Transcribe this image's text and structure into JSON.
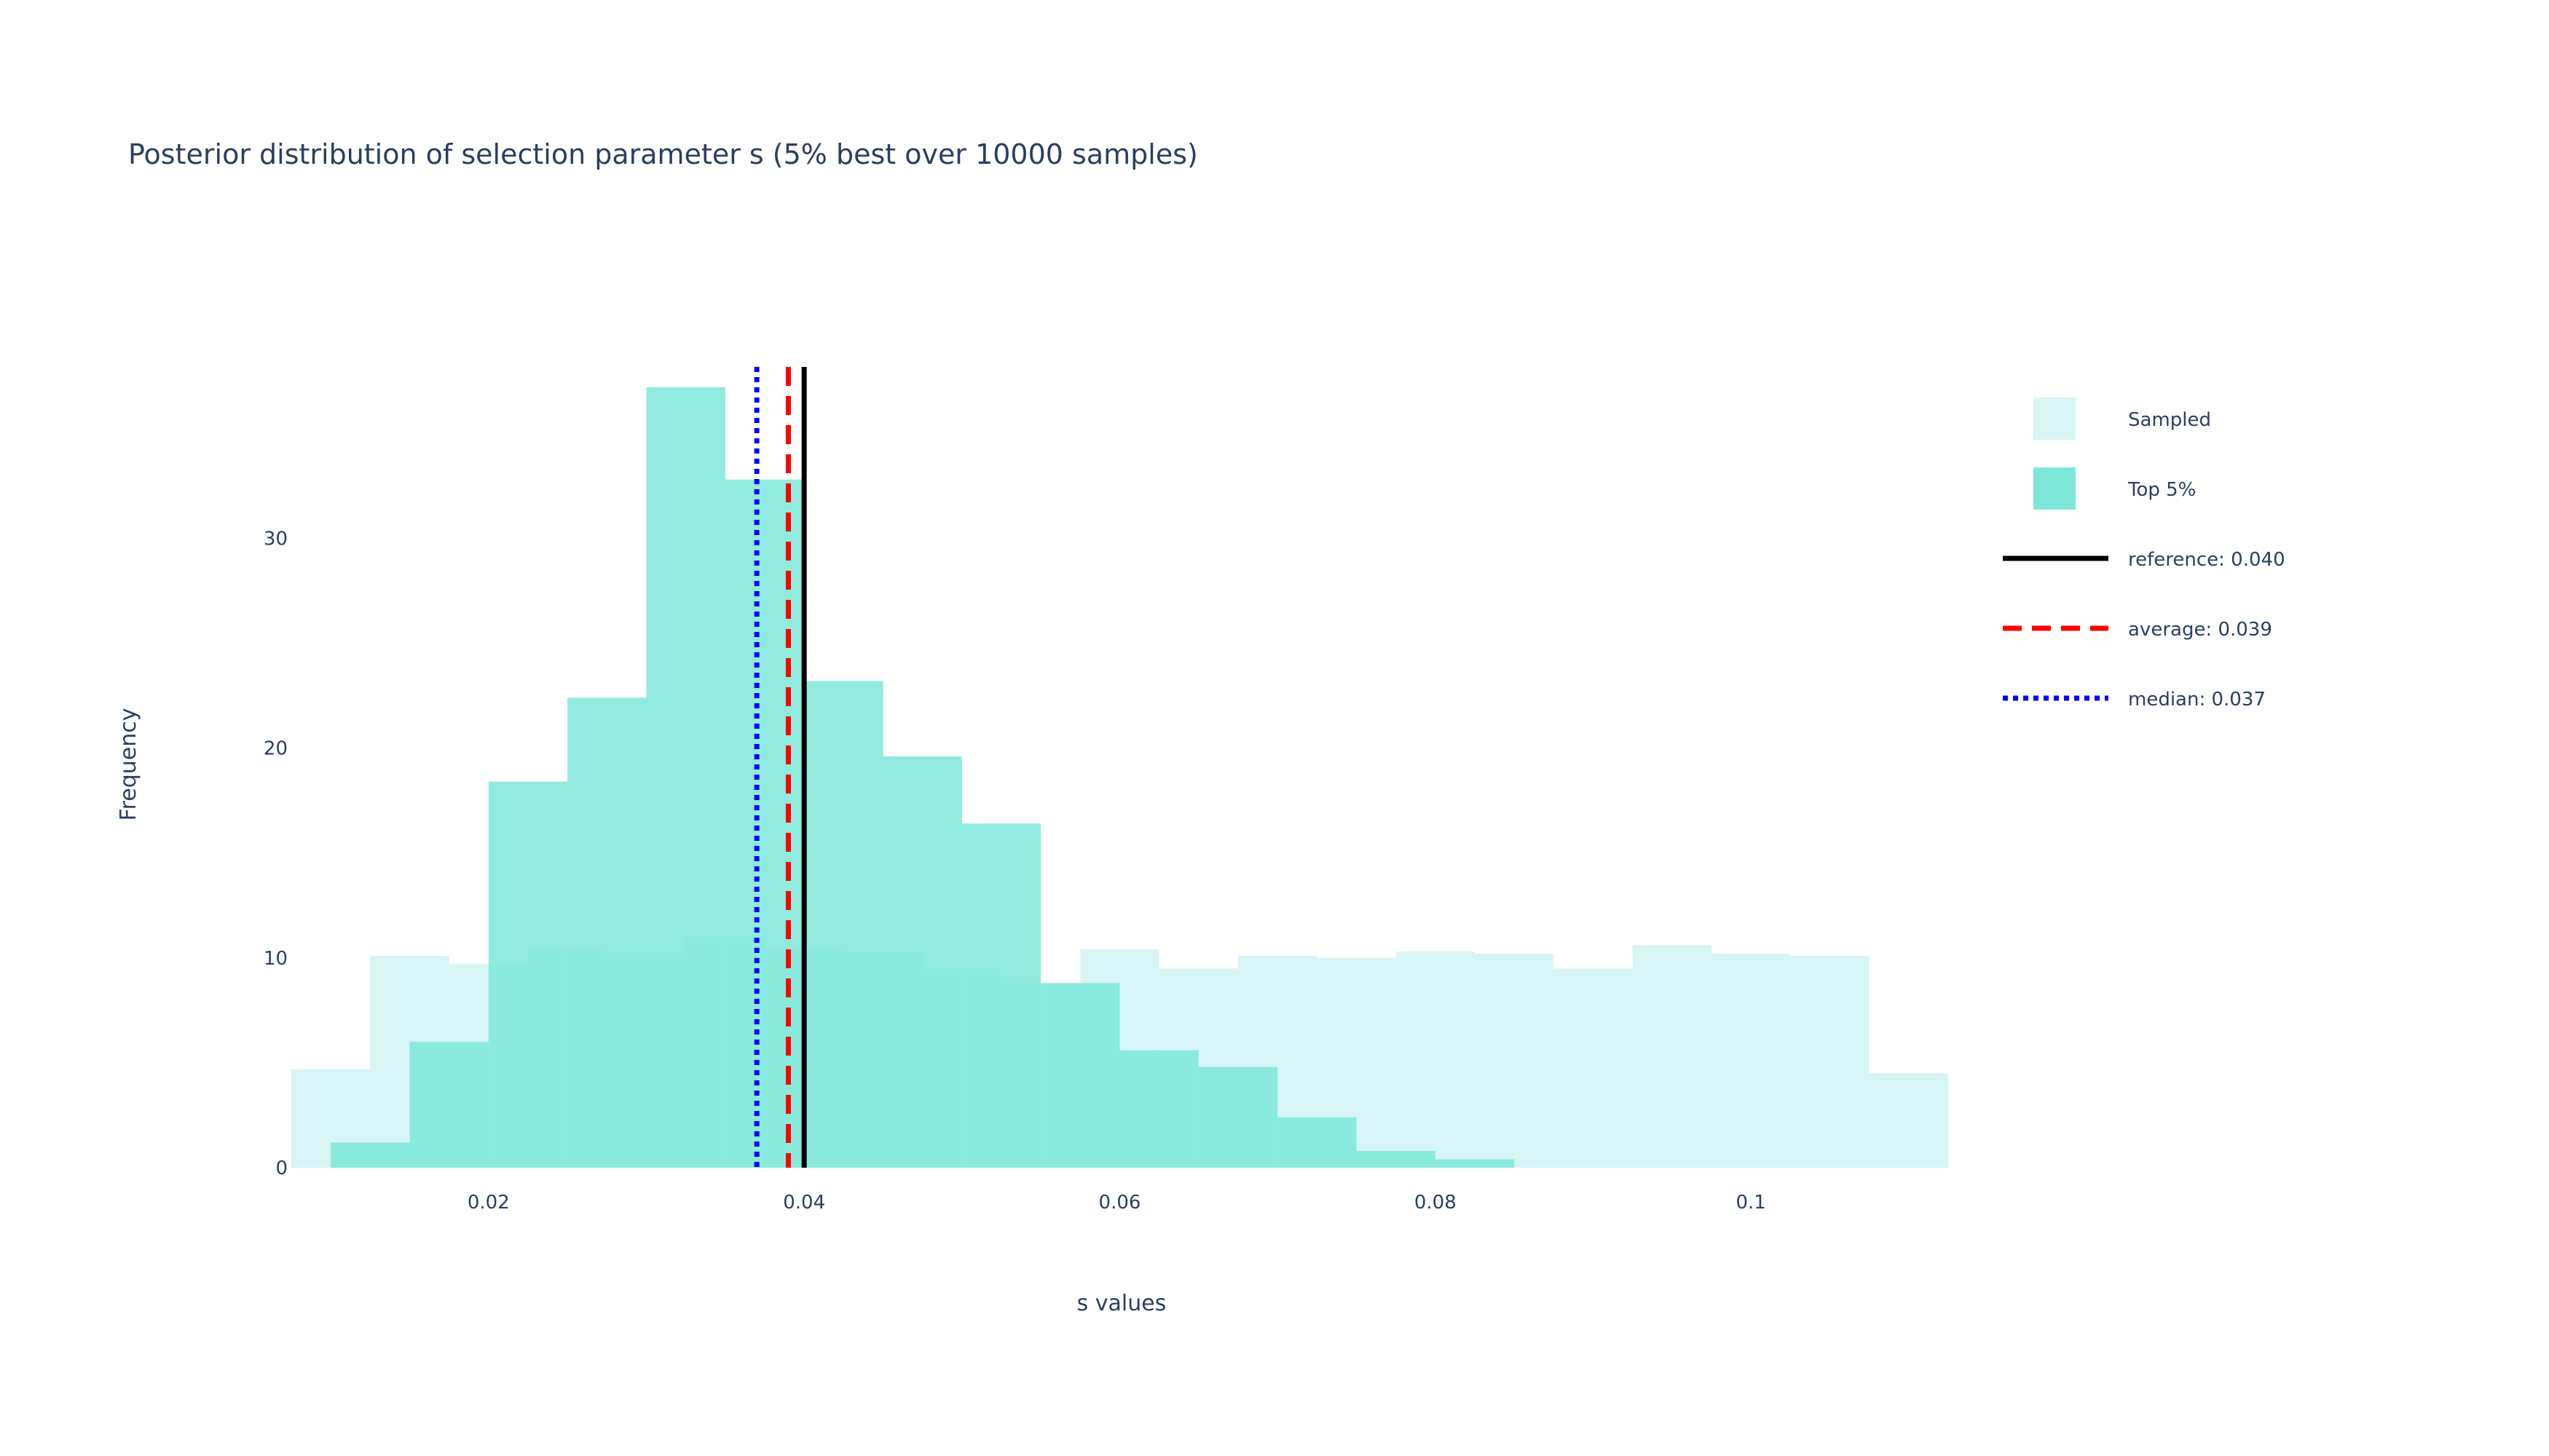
{
  "chart_data": {
    "type": "bar",
    "title": "Posterior distribution of selection parameter s (5% best over 10000 samples)",
    "xlabel": "s values",
    "ylabel": "Frequency",
    "xlim": [
      0.0075,
      0.1125
    ],
    "ylim": [
      0,
      39
    ],
    "x_ticks": [
      0.02,
      0.04,
      0.06,
      0.08,
      0.1
    ],
    "x_tick_labels": [
      "0.02",
      "0.04",
      "0.06",
      "0.08",
      "0.1"
    ],
    "y_ticks": [
      0,
      10,
      20,
      30
    ],
    "y_tick_labels": [
      "0",
      "10",
      "20",
      "30"
    ],
    "barmode": "overlay",
    "series": [
      {
        "name": "Sampled",
        "color": "#d6f5f4",
        "bin_edges": [
          0.0075,
          0.0125,
          0.0175,
          0.0225,
          0.0275,
          0.0325,
          0.0375,
          0.0425,
          0.0475,
          0.0525,
          0.0575,
          0.0625,
          0.0675,
          0.0725,
          0.0775,
          0.0825,
          0.0875,
          0.0925,
          0.0975,
          0.1025,
          0.1075,
          0.1125
        ],
        "values": [
          4.7,
          10.1,
          9.7,
          10.4,
          10.0,
          11.0,
          10.4,
          10.3,
          9.5,
          8.8,
          10.4,
          9.5,
          10.1,
          10.0,
          10.3,
          10.2,
          9.5,
          10.6,
          10.2,
          10.1,
          4.5
        ]
      },
      {
        "name": "Top 5%",
        "color": "#7de8d8",
        "bin_edges": [
          0.01,
          0.015,
          0.02,
          0.025,
          0.03,
          0.035,
          0.04,
          0.045,
          0.05,
          0.055,
          0.06,
          0.065,
          0.07,
          0.075,
          0.08,
          0.085
        ],
        "values": [
          1.2,
          6.0,
          18.4,
          22.4,
          37.2,
          32.8,
          23.2,
          19.6,
          16.4,
          8.8,
          5.6,
          4.8,
          2.4,
          0.8,
          0.4
        ]
      }
    ],
    "reference_lines": [
      {
        "name": "reference: 0.040",
        "x": 0.04,
        "color": "#000000",
        "dash": "solid"
      },
      {
        "name": "average: 0.039",
        "x": 0.039,
        "color": "#ff0000",
        "dash": "dash"
      },
      {
        "name": "median: 0.037",
        "x": 0.037,
        "color": "#0000ff",
        "dash": "dot"
      }
    ],
    "legend": {
      "placement": "top-right",
      "items": [
        {
          "label": "Sampled",
          "kind": "box",
          "color": "#d6f5f4"
        },
        {
          "label": "Top 5%",
          "kind": "box",
          "color": "#7de8d8"
        },
        {
          "label": "reference: 0.040",
          "kind": "line",
          "color": "#000000",
          "dash": "solid"
        },
        {
          "label": "average: 0.039",
          "kind": "line",
          "color": "#ff0000",
          "dash": "dash"
        },
        {
          "label": "median: 0.037",
          "kind": "line",
          "color": "#0000ff",
          "dash": "dot"
        }
      ]
    }
  }
}
